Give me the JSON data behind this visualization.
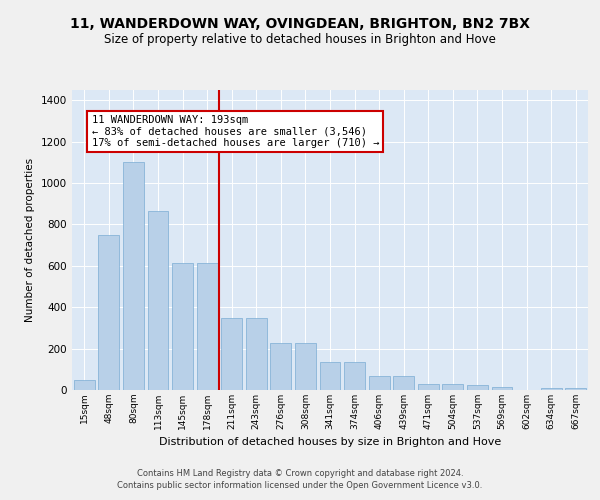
{
  "title": "11, WANDERDOWN WAY, OVINGDEAN, BRIGHTON, BN2 7BX",
  "subtitle": "Size of property relative to detached houses in Brighton and Hove",
  "xlabel": "Distribution of detached houses by size in Brighton and Hove",
  "ylabel": "Number of detached properties",
  "footer1": "Contains HM Land Registry data © Crown copyright and database right 2024.",
  "footer2": "Contains public sector information licensed under the Open Government Licence v3.0.",
  "bar_labels": [
    "15sqm",
    "48sqm",
    "80sqm",
    "113sqm",
    "145sqm",
    "178sqm",
    "211sqm",
    "243sqm",
    "276sqm",
    "308sqm",
    "341sqm",
    "374sqm",
    "406sqm",
    "439sqm",
    "471sqm",
    "504sqm",
    "537sqm",
    "569sqm",
    "602sqm",
    "634sqm",
    "667sqm"
  ],
  "bar_values": [
    50,
    750,
    1100,
    865,
    615,
    615,
    350,
    350,
    225,
    225,
    135,
    135,
    68,
    68,
    30,
    30,
    22,
    15,
    0,
    12,
    12
  ],
  "bar_color": "#b8d0e8",
  "bar_edge_color": "#7aadd4",
  "annotation_text": "11 WANDERDOWN WAY: 193sqm\n← 83% of detached houses are smaller (3,546)\n17% of semi-detached houses are larger (710) →",
  "annotation_border_color": "#cc0000",
  "red_line_x": 5.5,
  "ylim": [
    0,
    1450
  ],
  "bg_color": "#dce8f5",
  "grid_color": "#ffffff",
  "title_fontsize": 10,
  "subtitle_fontsize": 8.5
}
